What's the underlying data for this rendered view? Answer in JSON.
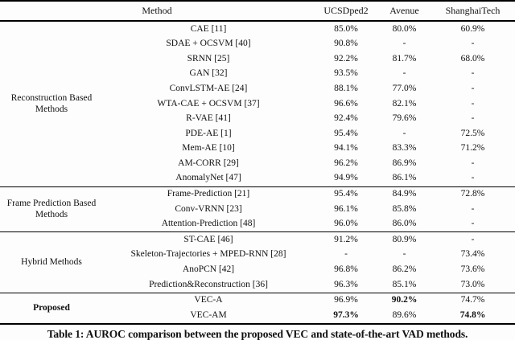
{
  "table": {
    "header": {
      "method": "Method",
      "cols": [
        "UCSDped2",
        "Avenue",
        "ShanghaiTech"
      ]
    },
    "groups": [
      {
        "label": "Reconstruction Based Methods",
        "rows": [
          {
            "method": "CAE [11]",
            "vals": [
              "85.0%",
              "80.0%",
              "60.9%"
            ]
          },
          {
            "method": "SDAE + OCSVM [40]",
            "vals": [
              "90.8%",
              "-",
              "-"
            ]
          },
          {
            "method": "SRNN [25]",
            "vals": [
              "92.2%",
              "81.7%",
              "68.0%"
            ]
          },
          {
            "method": "GAN [32]",
            "vals": [
              "93.5%",
              "-",
              "-"
            ]
          },
          {
            "method": "ConvLSTM-AE [24]",
            "vals": [
              "88.1%",
              "77.0%",
              "-"
            ]
          },
          {
            "method": "WTA-CAE + OCSVM [37]",
            "vals": [
              "96.6%",
              "82.1%",
              "-"
            ]
          },
          {
            "method": "R-VAE [41]",
            "vals": [
              "92.4%",
              "79.6%",
              "-"
            ]
          },
          {
            "method": "PDE-AE [1]",
            "vals": [
              "95.4%",
              "-",
              "72.5%"
            ]
          },
          {
            "method": "Mem-AE [10]",
            "vals": [
              "94.1%",
              "83.3%",
              "71.2%"
            ]
          },
          {
            "method": "AM-CORR [29]",
            "vals": [
              "96.2%",
              "86.9%",
              "-"
            ]
          },
          {
            "method": "AnomalyNet [47]",
            "vals": [
              "94.9%",
              "86.1%",
              "-"
            ]
          }
        ]
      },
      {
        "label": "Frame Prediction Based Methods",
        "rows": [
          {
            "method": "Frame-Prediction [21]",
            "vals": [
              "95.4%",
              "84.9%",
              "72.8%"
            ]
          },
          {
            "method": "Conv-VRNN [23]",
            "vals": [
              "96.1%",
              "85.8%",
              "-"
            ]
          },
          {
            "method": "Attention-Prediction [48]",
            "vals": [
              "96.0%",
              "86.0%",
              "-"
            ]
          }
        ]
      },
      {
        "label": "Hybrid Methods",
        "rows": [
          {
            "method": "ST-CAE [46]",
            "vals": [
              "91.2%",
              "80.9%",
              "-"
            ]
          },
          {
            "method": "Skeleton-Trajectories + MPED-RNN [28]",
            "vals": [
              "-",
              "-",
              "73.4%"
            ]
          },
          {
            "method": "AnoPCN [42]",
            "vals": [
              "96.8%",
              "86.2%",
              "73.6%"
            ]
          },
          {
            "method": "Prediction&Reconstruction [36]",
            "vals": [
              "96.3%",
              "85.1%",
              "73.0%"
            ]
          }
        ]
      },
      {
        "label": "Proposed",
        "rows": [
          {
            "method": "VEC-A",
            "vals": [
              "96.9%",
              "90.2%",
              "74.7%"
            ]
          },
          {
            "method": "VEC-AM",
            "vals": [
              "97.3%",
              "89.6%",
              "74.8%"
            ]
          }
        ]
      }
    ],
    "caption": "Table 1: AUROC comparison between the proposed VEC and state-of-the-art VAD methods."
  }
}
